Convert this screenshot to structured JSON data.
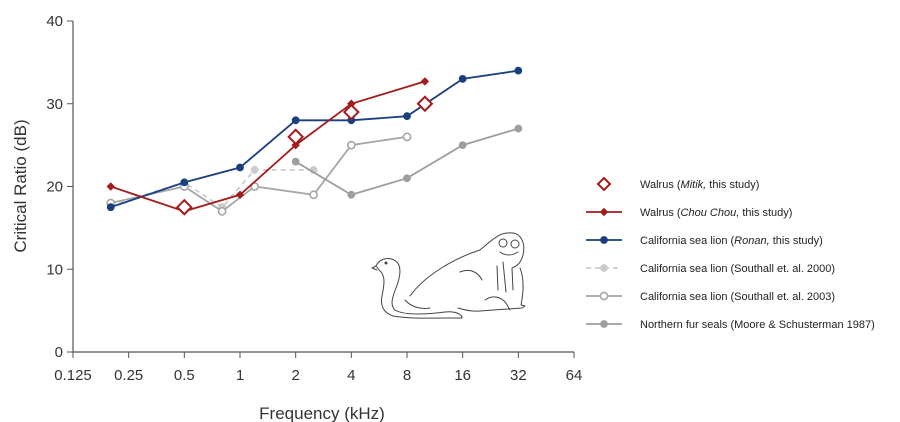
{
  "chart_data": {
    "type": "line",
    "xlabel": "Frequency (kHz)",
    "ylabel": "Critical Ratio (dB)",
    "x_scale": "log2",
    "xlim": [
      0.125,
      64
    ],
    "ylim": [
      0,
      40
    ],
    "x_ticks": [
      "0.125",
      "0.25",
      "0.5",
      "1",
      "2",
      "4",
      "8",
      "16",
      "32",
      "64"
    ],
    "y_ticks": [
      "0",
      "10",
      "20",
      "30",
      "40"
    ],
    "grid": false,
    "legend_position": "right",
    "series": [
      {
        "name_parts": [
          "Walrus (",
          "Mitik,",
          " this study)"
        ],
        "color": "#a31c1c",
        "style": "open-diamond-markers-only",
        "points": [
          [
            0.5,
            17.5
          ],
          [
            2,
            26
          ],
          [
            4,
            29
          ],
          [
            10,
            30
          ]
        ]
      },
      {
        "name_parts": [
          "Walrus (",
          "Chou Chou,",
          " this study)"
        ],
        "color": "#a31c1c",
        "style": "solid-line-small-diamonds",
        "points": [
          [
            0.2,
            20
          ],
          [
            0.5,
            17
          ],
          [
            1,
            19
          ],
          [
            2,
            25
          ],
          [
            4,
            30
          ],
          [
            10,
            32.7
          ]
        ]
      },
      {
        "name_parts": [
          "California sea lion (",
          "Ronan,",
          " this study)"
        ],
        "color": "#1a3f7f",
        "style": "solid-line-filled-circles",
        "points": [
          [
            0.2,
            17.5
          ],
          [
            0.5,
            20.5
          ],
          [
            1,
            22.3
          ],
          [
            2,
            28
          ],
          [
            4,
            28
          ],
          [
            8,
            28.5
          ],
          [
            16,
            33
          ],
          [
            32,
            34
          ]
        ]
      },
      {
        "name_parts": [
          "California sea lion (Southall et. al. 2000)"
        ],
        "color": "#cccccc",
        "style": "dashed-line-filled-circles",
        "points": [
          [
            0.2,
            17.7
          ],
          [
            0.5,
            20.5
          ],
          [
            0.8,
            17.5
          ],
          [
            1.2,
            22
          ],
          [
            2.5,
            22
          ]
        ]
      },
      {
        "name_parts": [
          "California sea lion (Southall et. al. 2003)"
        ],
        "color": "#a6a6a6",
        "style": "solid-line-open-circles",
        "points": [
          [
            0.2,
            18
          ],
          [
            0.5,
            20
          ],
          [
            0.8,
            17
          ],
          [
            1.2,
            20
          ],
          [
            2.5,
            19
          ],
          [
            4,
            25
          ],
          [
            8,
            26
          ]
        ]
      },
      {
        "name_parts": [
          "Northern fur seals (Moore & Schusterman 1987)"
        ],
        "color": "#9e9e9e",
        "style": "solid-line-filled-circles",
        "points": [
          [
            2,
            23
          ],
          [
            4,
            19
          ],
          [
            8,
            21
          ],
          [
            16,
            25
          ],
          [
            32,
            27
          ]
        ]
      }
    ]
  },
  "illustration": {
    "icon": "walrus-and-sea-lion-drawing"
  }
}
